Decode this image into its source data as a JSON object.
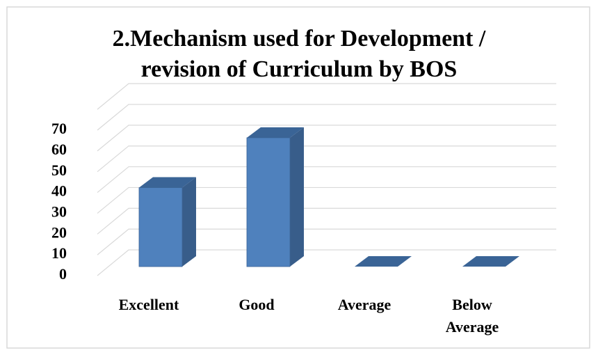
{
  "chart_data": {
    "type": "bar3d",
    "title": "2.Mechanism used for Development / revision of Curriculum by BOS",
    "categories": [
      "Excellent",
      "Good",
      "Average",
      "Below Average"
    ],
    "values": [
      38,
      62,
      0,
      0
    ],
    "color": "#4f81bd",
    "ylim": [
      0,
      80
    ],
    "yticks": [
      0,
      10,
      20,
      30,
      40,
      50,
      60,
      70
    ],
    "grid": true
  }
}
